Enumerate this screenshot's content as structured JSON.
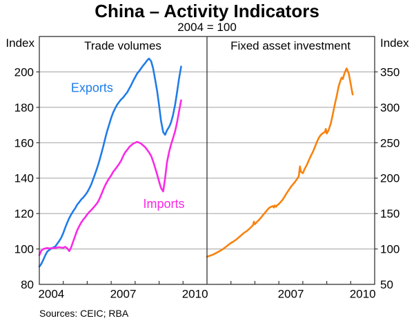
{
  "chart_data": {
    "type": "line",
    "title": "China – Activity Indicators",
    "subtitle": "2004 = 100",
    "footer": "Sources: CEIC; RBA",
    "colors": {
      "exports": "#1f7ce8",
      "imports": "#fa28e6",
      "fai": "#f8820d",
      "gridline": "#a0a0a0",
      "frame": "#333333"
    },
    "y_left": {
      "label": "Index",
      "min": 80,
      "max": 220,
      "ticks": [
        80,
        100,
        120,
        140,
        160,
        180,
        200
      ]
    },
    "y_right": {
      "label": "Index",
      "min": 50,
      "max": 400,
      "ticks": [
        50,
        100,
        150,
        200,
        250,
        300,
        350
      ]
    },
    "x": {
      "start": 2004,
      "end": 2011,
      "tick_years": [
        2005,
        2006,
        2007,
        2008,
        2009,
        2010
      ]
    },
    "panels": [
      {
        "title": "Trade volumes",
        "x_label_years": [
          2004,
          2007,
          2010
        ],
        "series": [
          {
            "name": "Exports",
            "color": "#1f7ce8",
            "axis": "left",
            "label_at": [
              2006.2,
              191
            ],
            "points": [
              [
                2004.0,
                90
              ],
              [
                2004.08,
                91.5
              ],
              [
                2004.17,
                94
              ],
              [
                2004.25,
                96.5
              ],
              [
                2004.33,
                98.5
              ],
              [
                2004.42,
                99.5
              ],
              [
                2004.5,
                100.3
              ],
              [
                2004.58,
                100.8
              ],
              [
                2004.67,
                101.5
              ],
              [
                2004.75,
                103
              ],
              [
                2004.83,
                104.5
              ],
              [
                2004.92,
                106.5
              ],
              [
                2005.0,
                109
              ],
              [
                2005.08,
                112
              ],
              [
                2005.17,
                115
              ],
              [
                2005.25,
                117.5
              ],
              [
                2005.33,
                119.5
              ],
              [
                2005.42,
                121.5
              ],
              [
                2005.5,
                123
              ],
              [
                2005.58,
                125
              ],
              [
                2005.67,
                126.5
              ],
              [
                2005.75,
                128
              ],
              [
                2005.83,
                129
              ],
              [
                2005.92,
                130.5
              ],
              [
                2006.0,
                132
              ],
              [
                2006.08,
                134
              ],
              [
                2006.17,
                136.5
              ],
              [
                2006.25,
                139.5
              ],
              [
                2006.33,
                142.5
              ],
              [
                2006.42,
                146
              ],
              [
                2006.5,
                149.5
              ],
              [
                2006.58,
                153.5
              ],
              [
                2006.67,
                158
              ],
              [
                2006.75,
                162.5
              ],
              [
                2006.83,
                166.5
              ],
              [
                2006.92,
                170.5
              ],
              [
                2007.0,
                174
              ],
              [
                2007.08,
                177
              ],
              [
                2007.17,
                179.5
              ],
              [
                2007.25,
                181.5
              ],
              [
                2007.33,
                183
              ],
              [
                2007.42,
                184.5
              ],
              [
                2007.5,
                185.5
              ],
              [
                2007.58,
                187
              ],
              [
                2007.67,
                188.5
              ],
              [
                2007.75,
                190.5
              ],
              [
                2007.83,
                192.5
              ],
              [
                2007.92,
                195
              ],
              [
                2008.0,
                197
              ],
              [
                2008.08,
                199
              ],
              [
                2008.17,
                200.5
              ],
              [
                2008.25,
                202
              ],
              [
                2008.33,
                203.5
              ],
              [
                2008.42,
                205
              ],
              [
                2008.5,
                206.5
              ],
              [
                2008.58,
                207.5
              ],
              [
                2008.67,
                206
              ],
              [
                2008.75,
                202
              ],
              [
                2008.83,
                196
              ],
              [
                2008.92,
                189
              ],
              [
                2009.0,
                181
              ],
              [
                2009.08,
                172.5
              ],
              [
                2009.17,
                166
              ],
              [
                2009.25,
                164.5
              ],
              [
                2009.33,
                167
              ],
              [
                2009.42,
                169
              ],
              [
                2009.5,
                171.5
              ],
              [
                2009.58,
                175.5
              ],
              [
                2009.67,
                181.5
              ],
              [
                2009.75,
                188.5
              ],
              [
                2009.83,
                196
              ],
              [
                2009.92,
                203
              ]
            ]
          },
          {
            "name": "Imports",
            "color": "#fa28e6",
            "axis": "left",
            "label_at": [
              2009.2,
              125.5
            ],
            "points": [
              [
                2004.0,
                96.5
              ],
              [
                2004.08,
                99
              ],
              [
                2004.17,
                100
              ],
              [
                2004.25,
                100.3
              ],
              [
                2004.33,
                100.5
              ],
              [
                2004.42,
                100.3
              ],
              [
                2004.5,
                100.4
              ],
              [
                2004.58,
                100.5
              ],
              [
                2004.67,
                100.6
              ],
              [
                2004.75,
                100.8
              ],
              [
                2004.83,
                101
              ],
              [
                2004.92,
                100.8
              ],
              [
                2005.0,
                100.7
              ],
              [
                2005.08,
                101.2
              ],
              [
                2005.17,
                100.3
              ],
              [
                2005.25,
                98.8
              ],
              [
                2005.33,
                101
              ],
              [
                2005.42,
                104.5
              ],
              [
                2005.5,
                107.5
              ],
              [
                2005.58,
                110.5
              ],
              [
                2005.67,
                113
              ],
              [
                2005.75,
                115
              ],
              [
                2005.83,
                116.5
              ],
              [
                2005.92,
                118
              ],
              [
                2006.0,
                119.5
              ],
              [
                2006.08,
                120.8
              ],
              [
                2006.17,
                122
              ],
              [
                2006.25,
                123.2
              ],
              [
                2006.33,
                124.5
              ],
              [
                2006.42,
                126
              ],
              [
                2006.5,
                128
              ],
              [
                2006.58,
                130.5
              ],
              [
                2006.67,
                133.5
              ],
              [
                2006.75,
                136
              ],
              [
                2006.83,
                138
              ],
              [
                2006.92,
                140
              ],
              [
                2007.0,
                141.5
              ],
              [
                2007.08,
                143.5
              ],
              [
                2007.17,
                145
              ],
              [
                2007.25,
                146.5
              ],
              [
                2007.33,
                148
              ],
              [
                2007.42,
                150
              ],
              [
                2007.5,
                152.5
              ],
              [
                2007.58,
                154.5
              ],
              [
                2007.67,
                156
              ],
              [
                2007.75,
                157.5
              ],
              [
                2007.83,
                158.5
              ],
              [
                2007.92,
                159.5
              ],
              [
                2008.0,
                160
              ],
              [
                2008.08,
                160.5
              ],
              [
                2008.17,
                160
              ],
              [
                2008.25,
                159.5
              ],
              [
                2008.33,
                158.5
              ],
              [
                2008.42,
                157.5
              ],
              [
                2008.5,
                156
              ],
              [
                2008.58,
                154.5
              ],
              [
                2008.67,
                152.5
              ],
              [
                2008.75,
                149.5
              ],
              [
                2008.83,
                146
              ],
              [
                2008.92,
                142
              ],
              [
                2009.0,
                138
              ],
              [
                2009.08,
                134.5
              ],
              [
                2009.17,
                132.5
              ],
              [
                2009.25,
                140
              ],
              [
                2009.33,
                149
              ],
              [
                2009.42,
                155
              ],
              [
                2009.5,
                159
              ],
              [
                2009.58,
                162.5
              ],
              [
                2009.67,
                166.5
              ],
              [
                2009.75,
                171.5
              ],
              [
                2009.83,
                177.5
              ],
              [
                2009.92,
                184
              ]
            ]
          }
        ]
      },
      {
        "title": "Fixed asset investment",
        "x_label_years": [
          2007,
          2010
        ],
        "series": [
          {
            "name": "Fixed asset investment",
            "color": "#f8820d",
            "axis": "right",
            "label_at": null,
            "points": [
              [
                2004.0,
                89
              ],
              [
                2004.08,
                90
              ],
              [
                2004.17,
                91
              ],
              [
                2004.25,
                92
              ],
              [
                2004.33,
                93.5
              ],
              [
                2004.42,
                95
              ],
              [
                2004.5,
                96.5
              ],
              [
                2004.58,
                98
              ],
              [
                2004.67,
                100
              ],
              [
                2004.75,
                102
              ],
              [
                2004.83,
                104
              ],
              [
                2004.92,
                106.5
              ],
              [
                2005.0,
                108.5
              ],
              [
                2005.08,
                110
              ],
              [
                2005.17,
                112
              ],
              [
                2005.25,
                114
              ],
              [
                2005.33,
                116.5
              ],
              [
                2005.42,
                119
              ],
              [
                2005.5,
                121.5
              ],
              [
                2005.58,
                123.5
              ],
              [
                2005.67,
                125.5
              ],
              [
                2005.75,
                128
              ],
              [
                2005.83,
                130.5
              ],
              [
                2005.92,
                133.5
              ],
              [
                2005.96,
                138.5
              ],
              [
                2006.0,
                135
              ],
              [
                2006.08,
                138
              ],
              [
                2006.17,
                141
              ],
              [
                2006.25,
                144
              ],
              [
                2006.33,
                147.5
              ],
              [
                2006.42,
                151
              ],
              [
                2006.5,
                154.5
              ],
              [
                2006.58,
                157.5
              ],
              [
                2006.67,
                159.5
              ],
              [
                2006.75,
                160.5
              ],
              [
                2006.79,
                158.5
              ],
              [
                2006.83,
                161.5
              ],
              [
                2006.88,
                159.5
              ],
              [
                2006.92,
                161.5
              ],
              [
                2007.0,
                163.5
              ],
              [
                2007.08,
                166.5
              ],
              [
                2007.17,
                170
              ],
              [
                2007.25,
                174.5
              ],
              [
                2007.33,
                179
              ],
              [
                2007.42,
                183.5
              ],
              [
                2007.5,
                187.5
              ],
              [
                2007.58,
                191
              ],
              [
                2007.67,
                194.5
              ],
              [
                2007.75,
                198.5
              ],
              [
                2007.83,
                202.5
              ],
              [
                2007.88,
                216.5
              ],
              [
                2007.92,
                209
              ],
              [
                2008.0,
                207
              ],
              [
                2008.08,
                213
              ],
              [
                2008.17,
                219
              ],
              [
                2008.25,
                225
              ],
              [
                2008.33,
                231
              ],
              [
                2008.42,
                237
              ],
              [
                2008.5,
                243.5
              ],
              [
                2008.58,
                250.5
              ],
              [
                2008.67,
                257
              ],
              [
                2008.75,
                261
              ],
              [
                2008.83,
                263.5
              ],
              [
                2008.92,
                265
              ],
              [
                2008.96,
                269.5
              ],
              [
                2009.0,
                263
              ],
              [
                2009.08,
                268
              ],
              [
                2009.17,
                277.5
              ],
              [
                2009.25,
                290
              ],
              [
                2009.33,
                303
              ],
              [
                2009.42,
                317
              ],
              [
                2009.5,
                330
              ],
              [
                2009.58,
                338.5
              ],
              [
                2009.62,
                342
              ],
              [
                2009.67,
                340
              ],
              [
                2009.75,
                349
              ],
              [
                2009.83,
                355
              ],
              [
                2009.92,
                347.5
              ],
              [
                2010.0,
                333
              ],
              [
                2010.04,
                325
              ],
              [
                2010.08,
                318
              ]
            ]
          }
        ]
      }
    ]
  }
}
